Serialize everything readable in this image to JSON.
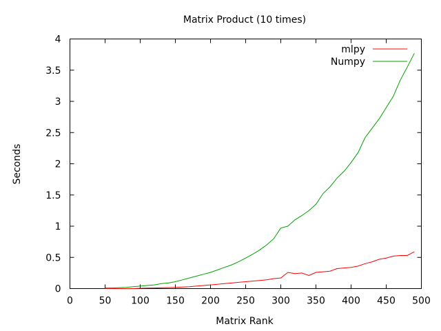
{
  "chart_data": {
    "type": "line",
    "title": "Matrix Product (10 times)",
    "xlabel": "Matrix Rank",
    "ylabel": "Seconds",
    "xlim": [
      0,
      500
    ],
    "ylim": [
      0,
      4
    ],
    "xticks": [
      0,
      50,
      100,
      150,
      200,
      250,
      300,
      350,
      400,
      450,
      500
    ],
    "yticks": [
      0,
      0.5,
      1,
      1.5,
      2,
      2.5,
      3,
      3.5,
      4
    ],
    "grid": false,
    "legend_position": "top-right",
    "series": [
      {
        "name": "mlpy",
        "color": "#ff0000",
        "x": [
          50,
          60,
          70,
          80,
          90,
          100,
          110,
          120,
          130,
          140,
          150,
          160,
          170,
          180,
          190,
          200,
          210,
          220,
          230,
          240,
          250,
          260,
          270,
          280,
          290,
          300,
          310,
          320,
          330,
          340,
          350,
          360,
          370,
          380,
          390,
          400,
          410,
          420,
          430,
          440,
          450,
          460,
          470,
          480,
          490
        ],
        "y": [
          0.0,
          0.0,
          0.0,
          0.0,
          0.0,
          0.005,
          0.008,
          0.01,
          0.013,
          0.017,
          0.02,
          0.025,
          0.03,
          0.04,
          0.05,
          0.06,
          0.07,
          0.08,
          0.09,
          0.1,
          0.11,
          0.12,
          0.13,
          0.14,
          0.16,
          0.17,
          0.26,
          0.24,
          0.25,
          0.21,
          0.26,
          0.27,
          0.28,
          0.32,
          0.33,
          0.34,
          0.36,
          0.4,
          0.43,
          0.47,
          0.49,
          0.52,
          0.53,
          0.53,
          0.59
        ]
      },
      {
        "name": "Numpy",
        "color": "#00a000",
        "x": [
          50,
          60,
          70,
          80,
          90,
          100,
          110,
          120,
          130,
          140,
          150,
          160,
          170,
          180,
          190,
          200,
          210,
          220,
          230,
          240,
          250,
          260,
          270,
          280,
          290,
          300,
          310,
          320,
          330,
          340,
          350,
          360,
          370,
          380,
          390,
          400,
          410,
          420,
          430,
          440,
          450,
          460,
          470,
          480,
          490
        ],
        "y": [
          0.01,
          0.01,
          0.015,
          0.02,
          0.03,
          0.04,
          0.05,
          0.06,
          0.08,
          0.09,
          0.11,
          0.14,
          0.17,
          0.2,
          0.23,
          0.26,
          0.3,
          0.34,
          0.38,
          0.43,
          0.49,
          0.55,
          0.62,
          0.7,
          0.8,
          0.97,
          1.0,
          1.1,
          1.17,
          1.25,
          1.35,
          1.52,
          1.63,
          1.77,
          1.88,
          2.02,
          2.18,
          2.42,
          2.57,
          2.72,
          2.9,
          3.08,
          3.34,
          3.55,
          3.77
        ]
      }
    ]
  }
}
